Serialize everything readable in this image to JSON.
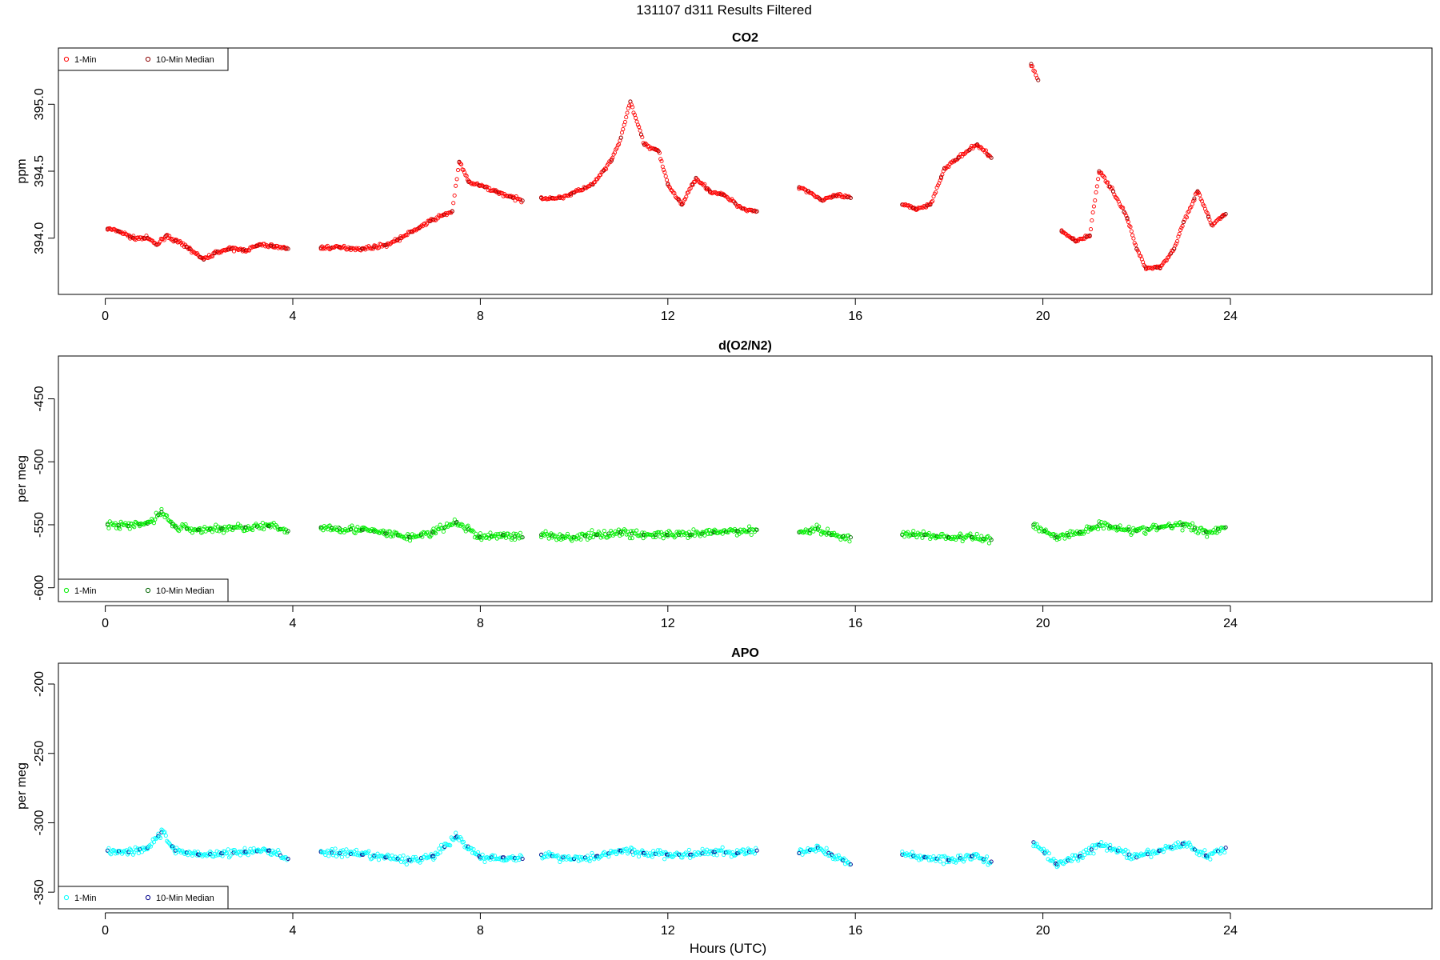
{
  "figure": {
    "title": "131107   d311   Results Filtered",
    "xlabel": "Hours (UTC)"
  },
  "chart_data": [
    {
      "type": "scatter",
      "title": "CO2",
      "xlabel": "",
      "ylabel": "ppm",
      "xlim": [
        -1,
        28.3
      ],
      "ylim": [
        393.58,
        395.42
      ],
      "xticks": [
        0,
        4,
        8,
        12,
        16,
        20,
        24
      ],
      "yticks": [
        394.0,
        394.5,
        395.0
      ],
      "ytick_labels": [
        "394.0",
        "394.5",
        "395.0"
      ],
      "legend": {
        "position": "top-left",
        "entries": [
          "1-Min",
          "10-Min Median"
        ]
      },
      "series": [
        {
          "name": "1-Min",
          "color": "#ff0000",
          "segments": [
            [
              [
                0.05,
                394.07
              ],
              [
                0.3,
                394.05
              ],
              [
                0.6,
                394.0
              ],
              [
                0.9,
                394.0
              ],
              [
                1.1,
                393.95
              ],
              [
                1.3,
                394.02
              ],
              [
                1.5,
                393.98
              ],
              [
                1.8,
                393.92
              ],
              [
                2.1,
                393.84
              ],
              [
                2.4,
                393.9
              ],
              [
                2.7,
                393.92
              ],
              [
                3.0,
                393.91
              ],
              [
                3.3,
                393.95
              ],
              [
                3.6,
                393.94
              ],
              [
                3.9,
                393.92
              ]
            ],
            [
              [
                4.6,
                393.93
              ],
              [
                5.0,
                393.93
              ],
              [
                5.5,
                393.92
              ],
              [
                6.0,
                393.95
              ],
              [
                6.3,
                394.0
              ],
              [
                6.7,
                394.08
              ],
              [
                7.0,
                394.14
              ],
              [
                7.4,
                394.2
              ],
              [
                7.55,
                394.57
              ],
              [
                7.75,
                394.42
              ],
              [
                8.1,
                394.38
              ],
              [
                8.4,
                394.34
              ],
              [
                8.7,
                394.3
              ],
              [
                8.9,
                394.28
              ]
            ],
            [
              [
                9.3,
                394.3
              ],
              [
                9.7,
                394.3
              ],
              [
                10.0,
                394.34
              ],
              [
                10.4,
                394.4
              ],
              [
                10.8,
                394.58
              ],
              [
                11.0,
                394.75
              ],
              [
                11.2,
                395.02
              ],
              [
                11.5,
                394.7
              ],
              [
                11.8,
                394.65
              ],
              [
                12.0,
                394.4
              ],
              [
                12.3,
                394.25
              ],
              [
                12.6,
                394.45
              ],
              [
                12.9,
                394.35
              ],
              [
                13.2,
                394.32
              ],
              [
                13.6,
                394.22
              ],
              [
                13.9,
                394.2
              ]
            ],
            [
              [
                14.8,
                394.38
              ],
              [
                15.0,
                394.35
              ],
              [
                15.3,
                394.28
              ],
              [
                15.6,
                394.32
              ],
              [
                15.9,
                394.3
              ]
            ],
            [
              [
                17.0,
                394.25
              ],
              [
                17.3,
                394.22
              ],
              [
                17.6,
                394.25
              ],
              [
                17.9,
                394.52
              ],
              [
                18.2,
                394.6
              ],
              [
                18.6,
                394.7
              ],
              [
                18.9,
                394.6
              ]
            ],
            [
              [
                19.75,
                395.3
              ],
              [
                19.9,
                395.18
              ]
            ],
            [
              [
                20.4,
                394.05
              ],
              [
                20.7,
                393.98
              ],
              [
                21.0,
                394.02
              ],
              [
                21.2,
                394.5
              ],
              [
                21.5,
                394.35
              ],
              [
                21.8,
                394.15
              ],
              [
                22.0,
                393.92
              ],
              [
                22.2,
                393.78
              ],
              [
                22.5,
                393.78
              ],
              [
                22.8,
                393.92
              ],
              [
                23.0,
                394.12
              ],
              [
                23.3,
                394.35
              ],
              [
                23.6,
                394.1
              ],
              [
                23.9,
                394.18
              ]
            ]
          ]
        },
        {
          "name": "10-Min Median",
          "color": "#8b0000",
          "segments": []
        }
      ]
    },
    {
      "type": "scatter",
      "title": "d(O2/N2)",
      "xlabel": "",
      "ylabel": "per meg",
      "xlim": [
        -1,
        28.3
      ],
      "ylim": [
        -611,
        -416
      ],
      "xticks": [
        0,
        4,
        8,
        12,
        16,
        20,
        24
      ],
      "yticks": [
        -600,
        -550,
        -500,
        -450
      ],
      "ytick_labels": [
        "-600",
        "-550",
        "-500",
        "-450"
      ],
      "legend": {
        "position": "bottom-left",
        "entries": [
          "1-Min",
          "10-Min Median"
        ]
      },
      "series": [
        {
          "name": "1-Min",
          "color": "#00ee00",
          "segments": [
            [
              [
                0.05,
                -550
              ],
              [
                0.5,
                -551
              ],
              [
                0.9,
                -549
              ],
              [
                1.2,
                -540
              ],
              [
                1.5,
                -552
              ],
              [
                2.0,
                -554
              ],
              [
                2.5,
                -553
              ],
              [
                3.0,
                -552
              ],
              [
                3.5,
                -551
              ],
              [
                3.9,
                -555
              ]
            ],
            [
              [
                4.6,
                -552
              ],
              [
                5.0,
                -553
              ],
              [
                5.5,
                -554
              ],
              [
                6.0,
                -557
              ],
              [
                6.5,
                -560
              ],
              [
                7.0,
                -556
              ],
              [
                7.5,
                -548
              ],
              [
                8.0,
                -560
              ],
              [
                8.5,
                -558
              ],
              [
                8.9,
                -560
              ]
            ],
            [
              [
                9.3,
                -558
              ],
              [
                10.0,
                -560
              ],
              [
                10.5,
                -558
              ],
              [
                11.0,
                -556
              ],
              [
                11.5,
                -558
              ],
              [
                12.0,
                -558
              ],
              [
                12.5,
                -558
              ],
              [
                13.0,
                -556
              ],
              [
                13.5,
                -555
              ],
              [
                13.9,
                -554
              ]
            ],
            [
              [
                14.8,
                -556
              ],
              [
                15.2,
                -553
              ],
              [
                15.5,
                -558
              ],
              [
                15.9,
                -560
              ]
            ],
            [
              [
                17.0,
                -558
              ],
              [
                17.5,
                -558
              ],
              [
                18.0,
                -560
              ],
              [
                18.5,
                -560
              ],
              [
                18.9,
                -562
              ]
            ],
            [
              [
                19.8,
                -550
              ],
              [
                20.3,
                -560
              ],
              [
                20.8,
                -556
              ],
              [
                21.2,
                -550
              ],
              [
                21.6,
                -552
              ],
              [
                22.0,
                -555
              ],
              [
                22.5,
                -552
              ],
              [
                23.0,
                -550
              ],
              [
                23.5,
                -556
              ],
              [
                23.9,
                -552
              ]
            ]
          ]
        },
        {
          "name": "10-Min Median",
          "color": "#006400",
          "segments": []
        }
      ]
    },
    {
      "type": "scatter",
      "title": "APO",
      "xlabel": "Hours (UTC)",
      "ylabel": "per meg",
      "xlim": [
        -1,
        28.3
      ],
      "ylim": [
        -362,
        -185
      ],
      "xticks": [
        0,
        4,
        8,
        12,
        16,
        20,
        24
      ],
      "yticks": [
        -350,
        -300,
        -250,
        -200
      ],
      "ytick_labels": [
        "-350",
        "-300",
        "-250",
        "-200"
      ],
      "legend": {
        "position": "bottom-left",
        "entries": [
          "1-Min",
          "10-Min Median"
        ]
      },
      "series": [
        {
          "name": "1-Min",
          "color": "#00ffff",
          "segments": [
            [
              [
                0.05,
                -320
              ],
              [
                0.5,
                -321
              ],
              [
                0.9,
                -318
              ],
              [
                1.2,
                -307
              ],
              [
                1.5,
                -320
              ],
              [
                2.0,
                -323
              ],
              [
                2.5,
                -322
              ],
              [
                3.0,
                -321
              ],
              [
                3.5,
                -320
              ],
              [
                3.9,
                -326
              ]
            ],
            [
              [
                4.6,
                -321
              ],
              [
                5.0,
                -322
              ],
              [
                5.5,
                -323
              ],
              [
                6.0,
                -325
              ],
              [
                6.5,
                -327
              ],
              [
                7.0,
                -324
              ],
              [
                7.5,
                -310
              ],
              [
                8.0,
                -325
              ],
              [
                8.5,
                -325
              ],
              [
                8.9,
                -326
              ]
            ],
            [
              [
                9.3,
                -323
              ],
              [
                10.0,
                -326
              ],
              [
                10.5,
                -324
              ],
              [
                11.0,
                -320
              ],
              [
                11.5,
                -322
              ],
              [
                12.0,
                -323
              ],
              [
                12.5,
                -323
              ],
              [
                13.0,
                -321
              ],
              [
                13.5,
                -322
              ],
              [
                13.9,
                -320
              ]
            ],
            [
              [
                14.8,
                -322
              ],
              [
                15.2,
                -318
              ],
              [
                15.5,
                -323
              ],
              [
                15.9,
                -330
              ]
            ],
            [
              [
                17.0,
                -323
              ],
              [
                17.5,
                -325
              ],
              [
                18.0,
                -327
              ],
              [
                18.5,
                -324
              ],
              [
                18.9,
                -328
              ]
            ],
            [
              [
                19.8,
                -314
              ],
              [
                20.3,
                -330
              ],
              [
                20.8,
                -324
              ],
              [
                21.2,
                -316
              ],
              [
                21.6,
                -320
              ],
              [
                22.0,
                -325
              ],
              [
                22.5,
                -320
              ],
              [
                23.0,
                -315
              ],
              [
                23.5,
                -324
              ],
              [
                23.9,
                -318
              ]
            ]
          ]
        },
        {
          "name": "10-Min Median",
          "color": "#00008b",
          "segments": []
        }
      ]
    }
  ]
}
